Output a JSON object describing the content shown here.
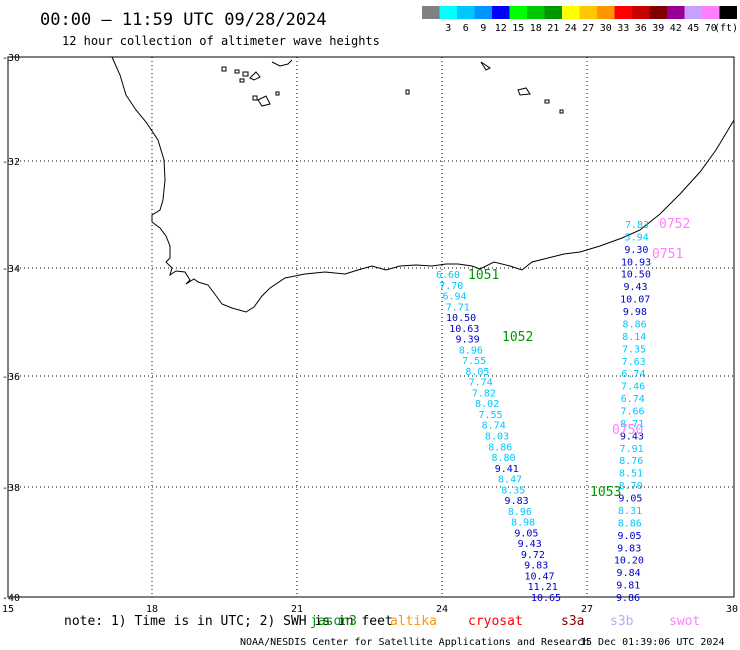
{
  "header": {
    "title": "00:00 – 11:59 UTC 09/28/2024",
    "subtitle": "12 hour collection of altimeter wave heights",
    "colorbar_unit": "(ft)",
    "colorbar": [
      {
        "label": "",
        "color": "#808080"
      },
      {
        "label": "3",
        "color": "#00ffff"
      },
      {
        "label": "6",
        "color": "#00c8ff"
      },
      {
        "label": "9",
        "color": "#0096ff"
      },
      {
        "label": "12",
        "color": "#0000ff"
      },
      {
        "label": "15",
        "color": "#00ff00"
      },
      {
        "label": "18",
        "color": "#00c800"
      },
      {
        "label": "21",
        "color": "#009600"
      },
      {
        "label": "24",
        "color": "#ffff00"
      },
      {
        "label": "27",
        "color": "#ffc800"
      },
      {
        "label": "30",
        "color": "#ff9600"
      },
      {
        "label": "33",
        "color": "#ff0000"
      },
      {
        "label": "36",
        "color": "#c80000"
      },
      {
        "label": "39",
        "color": "#800000"
      },
      {
        "label": "42",
        "color": "#960096"
      },
      {
        "label": "45",
        "color": "#c8a0ff"
      },
      {
        "label": "70",
        "color": "#ff80ff"
      },
      {
        "label": "",
        "color": "#000000"
      }
    ]
  },
  "axes": {
    "lat_labels": [
      "-30",
      "-32",
      "-34",
      "-36",
      "-38",
      "-40"
    ],
    "lon_labels": [
      "15",
      "18",
      "21",
      "24",
      "27",
      "30"
    ]
  },
  "passes": [
    {
      "label": "0752",
      "color": "#ff80ff"
    },
    {
      "label": "0751",
      "color": "#ff80ff"
    },
    {
      "label": "1051",
      "color": "#009600"
    },
    {
      "label": "1052",
      "color": "#009600"
    },
    {
      "label": "0750",
      "color": "#ff80ff"
    },
    {
      "label": "1053",
      "color": "#009600"
    }
  ],
  "track_west": [
    {
      "v": "6.60",
      "c": "#00c8ff"
    },
    {
      "v": "7.70",
      "c": "#00c8ff"
    },
    {
      "v": "6.94",
      "c": "#00c8ff"
    },
    {
      "v": "7.71",
      "c": "#00c8ff"
    },
    {
      "v": "10.50",
      "c": "#0000c8"
    },
    {
      "v": "10.63",
      "c": "#0000c8"
    },
    {
      "v": "9.39",
      "c": "#0000c8"
    },
    {
      "v": "8.96",
      "c": "#00c8ff"
    },
    {
      "v": "7.55",
      "c": "#00c8ff"
    },
    {
      "v": "8.05",
      "c": "#00c8ff"
    },
    {
      "v": "7.74",
      "c": "#00c8ff"
    },
    {
      "v": "7.82",
      "c": "#00c8ff"
    },
    {
      "v": "8.02",
      "c": "#00c8ff"
    },
    {
      "v": "7.55",
      "c": "#00c8ff"
    },
    {
      "v": "8.74",
      "c": "#00c8ff"
    },
    {
      "v": "8.03",
      "c": "#00c8ff"
    },
    {
      "v": "8.86",
      "c": "#00c8ff"
    },
    {
      "v": "8.80",
      "c": "#00c8ff"
    },
    {
      "v": "9.41",
      "c": "#0000c8"
    },
    {
      "v": "8.47",
      "c": "#00c8ff"
    },
    {
      "v": "8.35",
      "c": "#00c8ff"
    },
    {
      "v": "9.83",
      "c": "#0000c8"
    },
    {
      "v": "8.96",
      "c": "#00c8ff"
    },
    {
      "v": "8.98",
      "c": "#00c8ff"
    },
    {
      "v": "9.05",
      "c": "#0000c8"
    },
    {
      "v": "9.43",
      "c": "#0000c8"
    },
    {
      "v": "9.72",
      "c": "#0000c8"
    },
    {
      "v": "9.83",
      "c": "#0000c8"
    },
    {
      "v": "10.47",
      "c": "#0000c8"
    },
    {
      "v": "11.21",
      "c": "#0000c8"
    },
    {
      "v": "10.65",
      "c": "#0000c8"
    }
  ],
  "track_east": [
    {
      "v": "7.83",
      "c": "#00c8ff"
    },
    {
      "v": "5.94",
      "c": "#00c8ff"
    },
    {
      "v": "9.30",
      "c": "#0000c8"
    },
    {
      "v": "10.93",
      "c": "#0000c8"
    },
    {
      "v": "10.50",
      "c": "#0000c8"
    },
    {
      "v": "9.43",
      "c": "#0000c8"
    },
    {
      "v": "10.07",
      "c": "#0000c8"
    },
    {
      "v": "9.98",
      "c": "#0000c8"
    },
    {
      "v": "8.86",
      "c": "#00c8ff"
    },
    {
      "v": "8.14",
      "c": "#00c8ff"
    },
    {
      "v": "7.35",
      "c": "#00c8ff"
    },
    {
      "v": "7.63",
      "c": "#00c8ff"
    },
    {
      "v": "6.74",
      "c": "#00c8ff"
    },
    {
      "v": "7.46",
      "c": "#00c8ff"
    },
    {
      "v": "6.74",
      "c": "#00c8ff"
    },
    {
      "v": "7.66",
      "c": "#00c8ff"
    },
    {
      "v": "8.71",
      "c": "#00c8ff"
    },
    {
      "v": "9.43",
      "c": "#0000c8"
    },
    {
      "v": "7.91",
      "c": "#00c8ff"
    },
    {
      "v": "8.76",
      "c": "#00c8ff"
    },
    {
      "v": "8.51",
      "c": "#00c8ff"
    },
    {
      "v": "8.70",
      "c": "#00c8ff"
    },
    {
      "v": "9.05",
      "c": "#0000c8"
    },
    {
      "v": "8.31",
      "c": "#00c8ff"
    },
    {
      "v": "8.86",
      "c": "#00c8ff"
    },
    {
      "v": "9.05",
      "c": "#0000c8"
    },
    {
      "v": "9.83",
      "c": "#0000c8"
    },
    {
      "v": "10.20",
      "c": "#0000c8"
    },
    {
      "v": "9.84",
      "c": "#0000c8"
    },
    {
      "v": "9.81",
      "c": "#0000c8"
    },
    {
      "v": "9.86",
      "c": "#0000c8"
    }
  ],
  "footer": {
    "note": "note:  1) Time is in UTC; 2) SWH is in feet",
    "satellites": [
      {
        "label": "jason3",
        "color": "#009600"
      },
      {
        "label": "altika",
        "color": "#ff9600"
      },
      {
        "label": "cryosat",
        "color": "#ff0000"
      },
      {
        "label": "s3a",
        "color": "#800000"
      },
      {
        "label": "s3b",
        "color": "#c8a0ff"
      },
      {
        "label": "swot",
        "color": "#ff80ff"
      }
    ],
    "credit": "NOAA/NESDIS Center for Satellite Applications and Research",
    "timestamp": "15 Dec 01:39:06 UTC 2024"
  }
}
